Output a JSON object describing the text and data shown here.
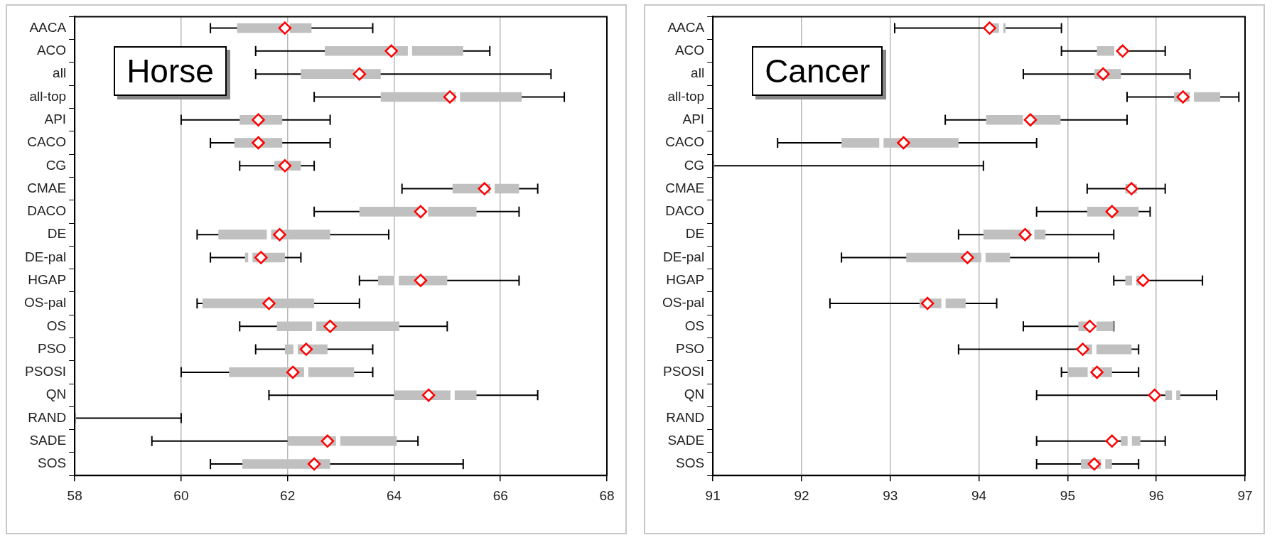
{
  "chart_data": [
    {
      "type": "box",
      "orientation": "horizontal",
      "title": "Horse",
      "grid": "x",
      "legend": false,
      "categories": [
        "AACA",
        "ACO",
        "all",
        "all-top",
        "API",
        "CACO",
        "CG",
        "CMAE",
        "DACO",
        "DE",
        "DE-pal",
        "HGAP",
        "OS-pal",
        "OS",
        "PSO",
        "PSOSI",
        "QN",
        "RAND",
        "SADE",
        "SOS"
      ],
      "xlim": [
        58,
        68
      ],
      "xticks": [
        58,
        60,
        62,
        64,
        66,
        68
      ],
      "series": [
        {
          "color": "#c0c0c0",
          "boxes": [
            {
              "low": 60.55,
              "q1": 61.05,
              "median": 62.0,
              "q3": 62.45,
              "high": 63.6,
              "mean": 61.95
            },
            {
              "low": 61.4,
              "q1": 62.7,
              "median": 64.3,
              "q3": 65.3,
              "high": 65.8,
              "mean": 63.95
            },
            {
              "low": 61.4,
              "q1": 62.25,
              "median": 63.3,
              "q3": 63.75,
              "high": 66.95,
              "mean": 63.35
            },
            {
              "low": 62.5,
              "q1": 63.75,
              "median": 65.2,
              "q3": 66.4,
              "high": 67.2,
              "mean": 65.05
            },
            {
              "low": 60.0,
              "q1": 61.1,
              "median": 61.45,
              "q3": 61.9,
              "high": 62.8,
              "mean": 61.45
            },
            {
              "low": 60.55,
              "q1": 61.0,
              "median": 61.45,
              "q3": 61.9,
              "high": 62.8,
              "mean": 61.45
            },
            {
              "low": 61.1,
              "q1": 61.75,
              "median": 61.95,
              "q3": 62.25,
              "high": 62.5,
              "mean": 61.95
            },
            {
              "low": 64.15,
              "q1": 65.1,
              "median": 65.85,
              "q3": 66.35,
              "high": 66.7,
              "mean": 65.7
            },
            {
              "low": 62.5,
              "q1": 63.35,
              "median": 64.6,
              "q3": 65.55,
              "high": 66.35,
              "mean": 64.5
            },
            {
              "low": 60.3,
              "q1": 60.7,
              "median": 61.65,
              "q3": 62.8,
              "high": 63.9,
              "mean": 61.85
            },
            {
              "low": 60.55,
              "q1": 61.2,
              "median": 61.3,
              "q3": 61.95,
              "high": 62.25,
              "mean": 61.5
            },
            {
              "low": 63.35,
              "q1": 63.7,
              "median": 64.05,
              "q3": 65.0,
              "high": 66.35,
              "mean": 64.5
            },
            {
              "low": 60.3,
              "q1": 60.4,
              "median": 61.65,
              "q3": 62.5,
              "high": 63.35,
              "mean": 61.65
            },
            {
              "low": 61.1,
              "q1": 61.8,
              "median": 62.5,
              "q3": 64.1,
              "high": 65.0,
              "mean": 62.8
            },
            {
              "low": 61.4,
              "q1": 61.95,
              "median": 62.15,
              "q3": 62.75,
              "high": 63.6,
              "mean": 62.35
            },
            {
              "low": 60.0,
              "q1": 60.9,
              "median": 62.35,
              "q3": 63.25,
              "high": 63.6,
              "mean": 62.1
            },
            {
              "low": 61.65,
              "q1": 64.0,
              "median": 65.1,
              "q3": 65.55,
              "high": 66.7,
              "mean": 64.65
            },
            {
              "low": 58,
              "q1": 58,
              "median": 58,
              "q3": 58,
              "high": 60.0
            },
            {
              "low": 59.45,
              "q1": 62.0,
              "median": 62.95,
              "q3": 64.05,
              "high": 64.45,
              "mean": 62.75
            },
            {
              "low": 60.55,
              "q1": 61.15,
              "median": 62.5,
              "q3": 62.8,
              "high": 65.3,
              "mean": 62.5
            }
          ]
        }
      ]
    },
    {
      "type": "box",
      "orientation": "horizontal",
      "title": "Cancer",
      "grid": "x",
      "legend": false,
      "categories": [
        "AACA",
        "ACO",
        "all",
        "all-top",
        "API",
        "CACO",
        "CG",
        "CMAE",
        "DACO",
        "DE",
        "DE-pal",
        "HGAP",
        "OS-pal",
        "OS",
        "PSO",
        "PSOSI",
        "QN",
        "RAND",
        "SADE",
        "SOS"
      ],
      "xlim": [
        91,
        97
      ],
      "xticks": [
        91,
        92,
        93,
        94,
        95,
        96,
        97
      ],
      "series": [
        {
          "color": "#c0c0c0",
          "boxes": [
            {
              "low": 93.05,
              "q1": 94.12,
              "median": 94.25,
              "q3": 94.3,
              "high": 94.93,
              "mean": 94.12
            },
            {
              "low": 94.93,
              "q1": 95.33,
              "median": 95.55,
              "q3": 95.6,
              "high": 96.1,
              "mean": 95.62
            },
            {
              "low": 94.5,
              "q1": 95.3,
              "median": 95.4,
              "q3": 95.6,
              "high": 96.38,
              "mean": 95.4
            },
            {
              "low": 95.67,
              "q1": 96.2,
              "median": 96.4,
              "q3": 96.72,
              "high": 96.93,
              "mean": 96.3
            },
            {
              "low": 93.62,
              "q1": 94.08,
              "median": 94.52,
              "q3": 94.92,
              "high": 95.67,
              "mean": 94.58
            },
            {
              "low": 91.73,
              "q1": 92.45,
              "median": 92.9,
              "q3": 93.77,
              "high": 94.65,
              "mean": 93.15
            },
            {
              "low": 91,
              "q1": 91,
              "median": 91,
              "q3": 91,
              "high": 94.05
            },
            {
              "low": 95.22,
              "q1": 95.65,
              "median": 95.72,
              "q3": 95.78,
              "high": 96.1,
              "mean": 95.72
            },
            {
              "low": 94.65,
              "q1": 95.22,
              "median": 95.5,
              "q3": 95.8,
              "high": 95.93,
              "mean": 95.5
            },
            {
              "low": 93.77,
              "q1": 94.05,
              "median": 94.6,
              "q3": 94.75,
              "high": 95.52,
              "mean": 94.52
            },
            {
              "low": 92.45,
              "q1": 93.18,
              "median": 94.05,
              "q3": 94.35,
              "high": 95.35,
              "mean": 93.87
            },
            {
              "low": 95.52,
              "q1": 95.65,
              "median": 95.75,
              "q3": 95.85,
              "high": 96.52,
              "mean": 95.85
            },
            {
              "low": 92.32,
              "q1": 93.33,
              "median": 93.6,
              "q3": 93.85,
              "high": 94.2,
              "mean": 93.42
            },
            {
              "low": 94.5,
              "q1": 95.12,
              "median": 95.3,
              "q3": 95.52,
              "high": 95.52,
              "mean": 95.25
            },
            {
              "low": 93.77,
              "q1": 95.2,
              "median": 95.3,
              "q3": 95.72,
              "high": 95.8,
              "mean": 95.17
            },
            {
              "low": 94.93,
              "q1": 95.0,
              "median": 95.25,
              "q3": 95.5,
              "high": 95.8,
              "mean": 95.33
            },
            {
              "low": 94.65,
              "q1": 96.1,
              "median": 96.2,
              "q3": 96.27,
              "high": 96.68,
              "mean": 95.98
            },
            null,
            {
              "low": 94.65,
              "q1": 95.6,
              "median": 95.7,
              "q3": 95.82,
              "high": 96.1,
              "mean": 95.5
            },
            {
              "low": 94.65,
              "q1": 95.15,
              "median": 95.4,
              "q3": 95.5,
              "high": 95.8,
              "mean": 95.3
            }
          ]
        }
      ]
    }
  ]
}
